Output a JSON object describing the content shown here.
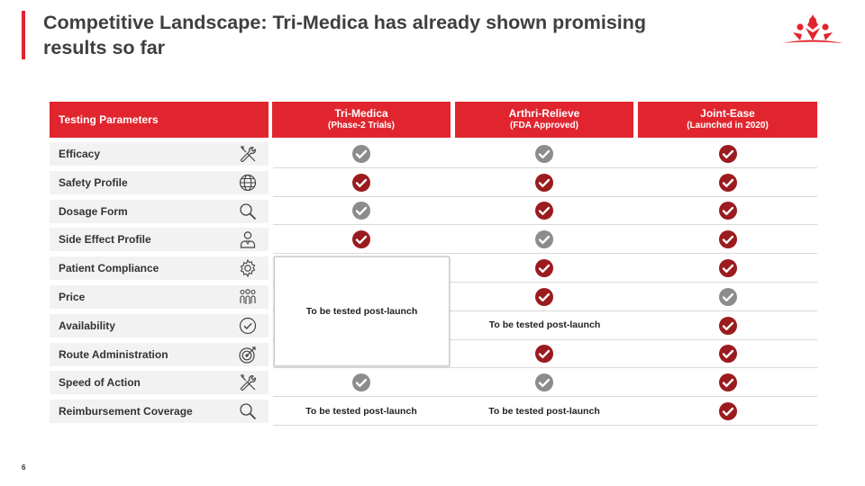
{
  "title": "Competitive Landscape: Tri-Medica has already shown promising results so far",
  "page_number": "6",
  "colors": {
    "accent": "#e1252f",
    "check_red": "#9b1b1f",
    "check_gray": "#8c8c8c"
  },
  "table": {
    "param_header": "Testing Parameters",
    "columns": [
      {
        "name": "Tri-Medica",
        "sub": "(Phase-2 Trials)"
      },
      {
        "name": "Arthri-Relieve",
        "sub": "(FDA Approved)"
      },
      {
        "name": "Joint-Ease",
        "sub": "(Launched in 2020)"
      }
    ],
    "rows": [
      {
        "label": "Efficacy",
        "icon": "tools-icon",
        "values": [
          "gray",
          "gray",
          "red"
        ]
      },
      {
        "label": "Safety Profile",
        "icon": "globe-icon",
        "values": [
          "red",
          "red",
          "red"
        ]
      },
      {
        "label": "Dosage Form",
        "icon": "magnifier-icon",
        "values": [
          "gray",
          "red",
          "red"
        ]
      },
      {
        "label": "Side Effect Profile",
        "icon": "person-icon",
        "values": [
          "red",
          "gray",
          "red"
        ]
      },
      {
        "label": "Patient Compliance",
        "icon": "gear-icon",
        "values": [
          "",
          "red",
          "red"
        ]
      },
      {
        "label": "Price",
        "icon": "people-icon",
        "values": [
          "",
          "red",
          "gray"
        ]
      },
      {
        "label": "Availability",
        "icon": "check-circle-icon",
        "values": [
          "",
          "",
          "red"
        ]
      },
      {
        "label": "Route Administration",
        "icon": "target-icon",
        "values": [
          "",
          "red",
          "red"
        ]
      },
      {
        "label": "Speed of Action",
        "icon": "tools-icon",
        "values": [
          "gray",
          "gray",
          "red"
        ]
      },
      {
        "label": "Reimbursement Coverage",
        "icon": "magnifier-icon",
        "values": [
          "note",
          "note",
          "red"
        ]
      }
    ],
    "notes": {
      "tri_medica_block": "To be tested post-launch",
      "arthri_availability": "To be tested post-launch",
      "tri_medica_reimbursement": "To be tested post-launch",
      "arthri_reimbursement": "To be tested post-launch"
    }
  }
}
